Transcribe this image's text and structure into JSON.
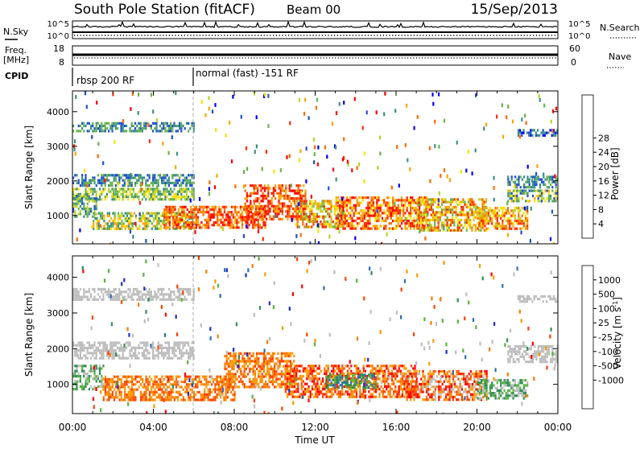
{
  "header": {
    "station": "South Pole Station (fitACF)",
    "beam": "Beam 00",
    "date": "15/Sep/2013"
  },
  "left_labels": {
    "nsky": "N.Sky",
    "freq_line1": "Freq.",
    "freq_line2": "[MHz]",
    "cpid": "CPID"
  },
  "right_labels": {
    "nsearch": "N.Search",
    "nave": "Nave"
  },
  "nsky_panel": {
    "ticks_left": [
      "10^5",
      "10^0"
    ],
    "ticks_right": [
      "10^5",
      "10^0"
    ]
  },
  "freq_panel": {
    "ticks_left": [
      "18",
      "8"
    ],
    "ticks_right": [
      "60",
      "0"
    ]
  },
  "cpid_panel": {
    "segments": [
      {
        "start_hour": 0,
        "label": "rbsp 200 RF"
      },
      {
        "start_hour": 6,
        "label": "normal (fast) -151 RF"
      }
    ]
  },
  "chart_data": [
    {
      "type": "heatmap",
      "name": "power",
      "ylabel": "Slant Range [km]",
      "y_ticks": [
        1000,
        2000,
        3000,
        4000
      ],
      "ylim": [
        180,
        4600
      ],
      "x_range_hours": [
        0,
        24
      ],
      "colorbar": {
        "label": "Power [dB]",
        "ticks": [
          "4",
          "8",
          "12",
          "16",
          "20",
          "24",
          "28"
        ],
        "colors": [
          "#0000ff",
          "#1f4fd2",
          "#3c8f86",
          "#67b44a",
          "#b8d328",
          "#ffe000",
          "#ffa500",
          "#ff6a00",
          "#ff2a00",
          "#ff0000"
        ]
      },
      "bands": [
        {
          "h0": 0.0,
          "h1": 6.0,
          "y0": 3450,
          "y1": 3700,
          "cls": [
            1,
            3
          ]
        },
        {
          "h0": 0.0,
          "h1": 6.0,
          "y0": 1900,
          "y1": 2200,
          "cls": [
            1,
            3
          ]
        },
        {
          "h0": 0.0,
          "h1": 6.0,
          "y0": 1450,
          "y1": 1800,
          "cls": [
            2,
            5
          ]
        },
        {
          "h0": 0.0,
          "h1": 1.2,
          "y0": 1000,
          "y1": 1600,
          "cls": [
            1,
            4
          ]
        },
        {
          "h0": 1.0,
          "h1": 6.0,
          "y0": 620,
          "y1": 1100,
          "cls": [
            2,
            6
          ]
        },
        {
          "h0": 4.5,
          "h1": 9.5,
          "y0": 680,
          "y1": 1280,
          "cls": [
            6,
            9
          ]
        },
        {
          "h0": 8.5,
          "h1": 11.5,
          "y0": 900,
          "y1": 1900,
          "cls": [
            6,
            9
          ]
        },
        {
          "h0": 11.0,
          "h1": 13.5,
          "y0": 650,
          "y1": 1450,
          "cls": [
            3,
            8
          ]
        },
        {
          "h0": 13.0,
          "h1": 17.5,
          "y0": 650,
          "y1": 1550,
          "cls": [
            5,
            9
          ]
        },
        {
          "h0": 17.0,
          "h1": 20.5,
          "y0": 600,
          "y1": 1500,
          "cls": [
            3,
            8
          ]
        },
        {
          "h0": 20.0,
          "h1": 22.5,
          "y0": 650,
          "y1": 1250,
          "cls": [
            4,
            8
          ]
        },
        {
          "h0": 21.5,
          "h1": 24.0,
          "y0": 1850,
          "y1": 2150,
          "cls": [
            1,
            3
          ]
        },
        {
          "h0": 21.5,
          "h1": 24.0,
          "y0": 1450,
          "y1": 1750,
          "cls": [
            1,
            6
          ]
        },
        {
          "h0": 22.0,
          "h1": 24.0,
          "y0": 3300,
          "y1": 3500,
          "cls": [
            0,
            2
          ]
        }
      ]
    },
    {
      "type": "heatmap",
      "name": "velocity",
      "xlabel": "Time UT",
      "ylabel": "Slant Range [km]",
      "y_ticks": [
        1000,
        2000,
        3000,
        4000
      ],
      "ylim": [
        180,
        4600
      ],
      "x_range_hours": [
        0,
        24
      ],
      "x_ticks": [
        "00:00",
        "04:00",
        "08:00",
        "12:00",
        "16:00",
        "20:00",
        "00:00"
      ],
      "colorbar": {
        "label": "Velocity [m s^-1]",
        "ticks": [
          "1000",
          "500",
          "100",
          "25",
          "-25",
          "-100",
          "-500",
          "-1000"
        ],
        "colors": [
          "#1a2fcf",
          "#2a6fb4",
          "#2f8e57",
          "#58b43c",
          "#bdbdbd",
          "#bdbdbd",
          "#ff9a00",
          "#ff7a00",
          "#ff4000",
          "#ff0000"
        ]
      },
      "bands": [
        {
          "h0": 0.0,
          "h1": 6.0,
          "y0": 3400,
          "y1": 3700,
          "cls": [
            4,
            5
          ]
        },
        {
          "h0": 0.0,
          "h1": 6.0,
          "y0": 1700,
          "y1": 2200,
          "cls": [
            4,
            5
          ]
        },
        {
          "h0": 0.0,
          "h1": 1.5,
          "y0": 900,
          "y1": 1550,
          "cls": [
            2,
            4
          ]
        },
        {
          "h0": 1.5,
          "h1": 8.0,
          "y0": 600,
          "y1": 1250,
          "cls": [
            6,
            8
          ]
        },
        {
          "h0": 7.5,
          "h1": 11.0,
          "y0": 900,
          "y1": 1900,
          "cls": [
            6,
            8
          ]
        },
        {
          "h0": 10.5,
          "h1": 17.0,
          "y0": 650,
          "y1": 1550,
          "cls": [
            6,
            9
          ]
        },
        {
          "h0": 12.5,
          "h1": 15.0,
          "y0": 900,
          "y1": 1300,
          "cls": [
            1,
            3
          ]
        },
        {
          "h0": 16.5,
          "h1": 20.5,
          "y0": 550,
          "y1": 1400,
          "cls": [
            5,
            9
          ]
        },
        {
          "h0": 20.0,
          "h1": 22.5,
          "y0": 600,
          "y1": 1150,
          "cls": [
            2,
            4
          ]
        },
        {
          "h0": 21.5,
          "h1": 24.0,
          "y0": 1650,
          "y1": 2100,
          "cls": [
            4,
            5
          ]
        },
        {
          "h0": 22.0,
          "h1": 24.0,
          "y0": 3300,
          "y1": 3500,
          "cls": [
            4,
            5
          ]
        }
      ]
    }
  ]
}
